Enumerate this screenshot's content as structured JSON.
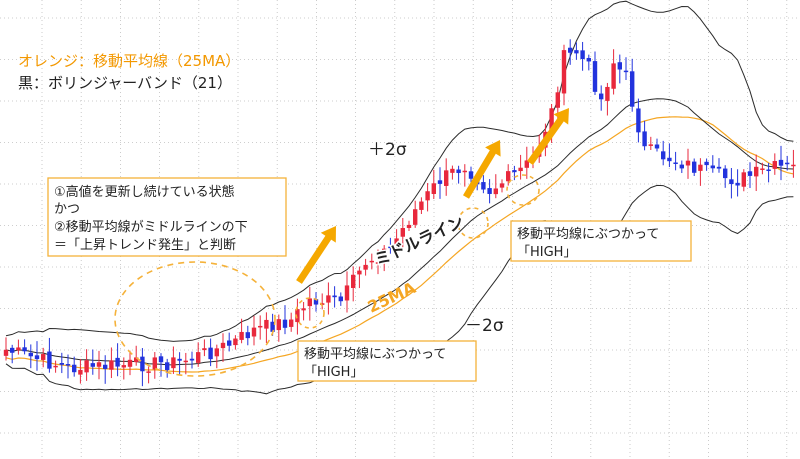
{
  "legend": {
    "line1": "オレンジ：移動平均線（25MA）",
    "line2": "黒：ボリンジャーバンド（21）"
  },
  "labels": {
    "plus2sigma": "＋2σ",
    "minus2sigma": "－2σ",
    "middle_line": "ミドルライン",
    "ma25": "25MA"
  },
  "conditions": {
    "line1": "①高値を更新し続けている状態",
    "line2": "かつ",
    "line3": "②移動平均線がミドルラインの下",
    "line4": "＝「上昇トレンド発生」と判断"
  },
  "callouts": {
    "left_line1": "移動平均線にぶつかって",
    "left_line2": "「HIGH」",
    "right_line1": "移動平均線にぶつかって",
    "right_line2": "「HIGH」"
  },
  "colors": {
    "up_candle": "#e8283c",
    "down_candle": "#2233dd",
    "ma25": "#f5a623",
    "bollinger": "#2b2b2b",
    "arrow": "#f5a800",
    "callout_border": "#f5b23a",
    "legend_orange": "#f39800",
    "grid": "#bfbfbf"
  },
  "chart_data": {
    "type": "candlestick",
    "x_axis": "hidden",
    "y_axis": "hidden",
    "grid": true,
    "series": [
      {
        "name": "25MA",
        "style": "line"
      },
      {
        "name": "ボリンジャーバンド（21）",
        "style": "band",
        "bands": [
          "＋2σ",
          "ミドルライン",
          "－2σ"
        ]
      }
    ]
  }
}
